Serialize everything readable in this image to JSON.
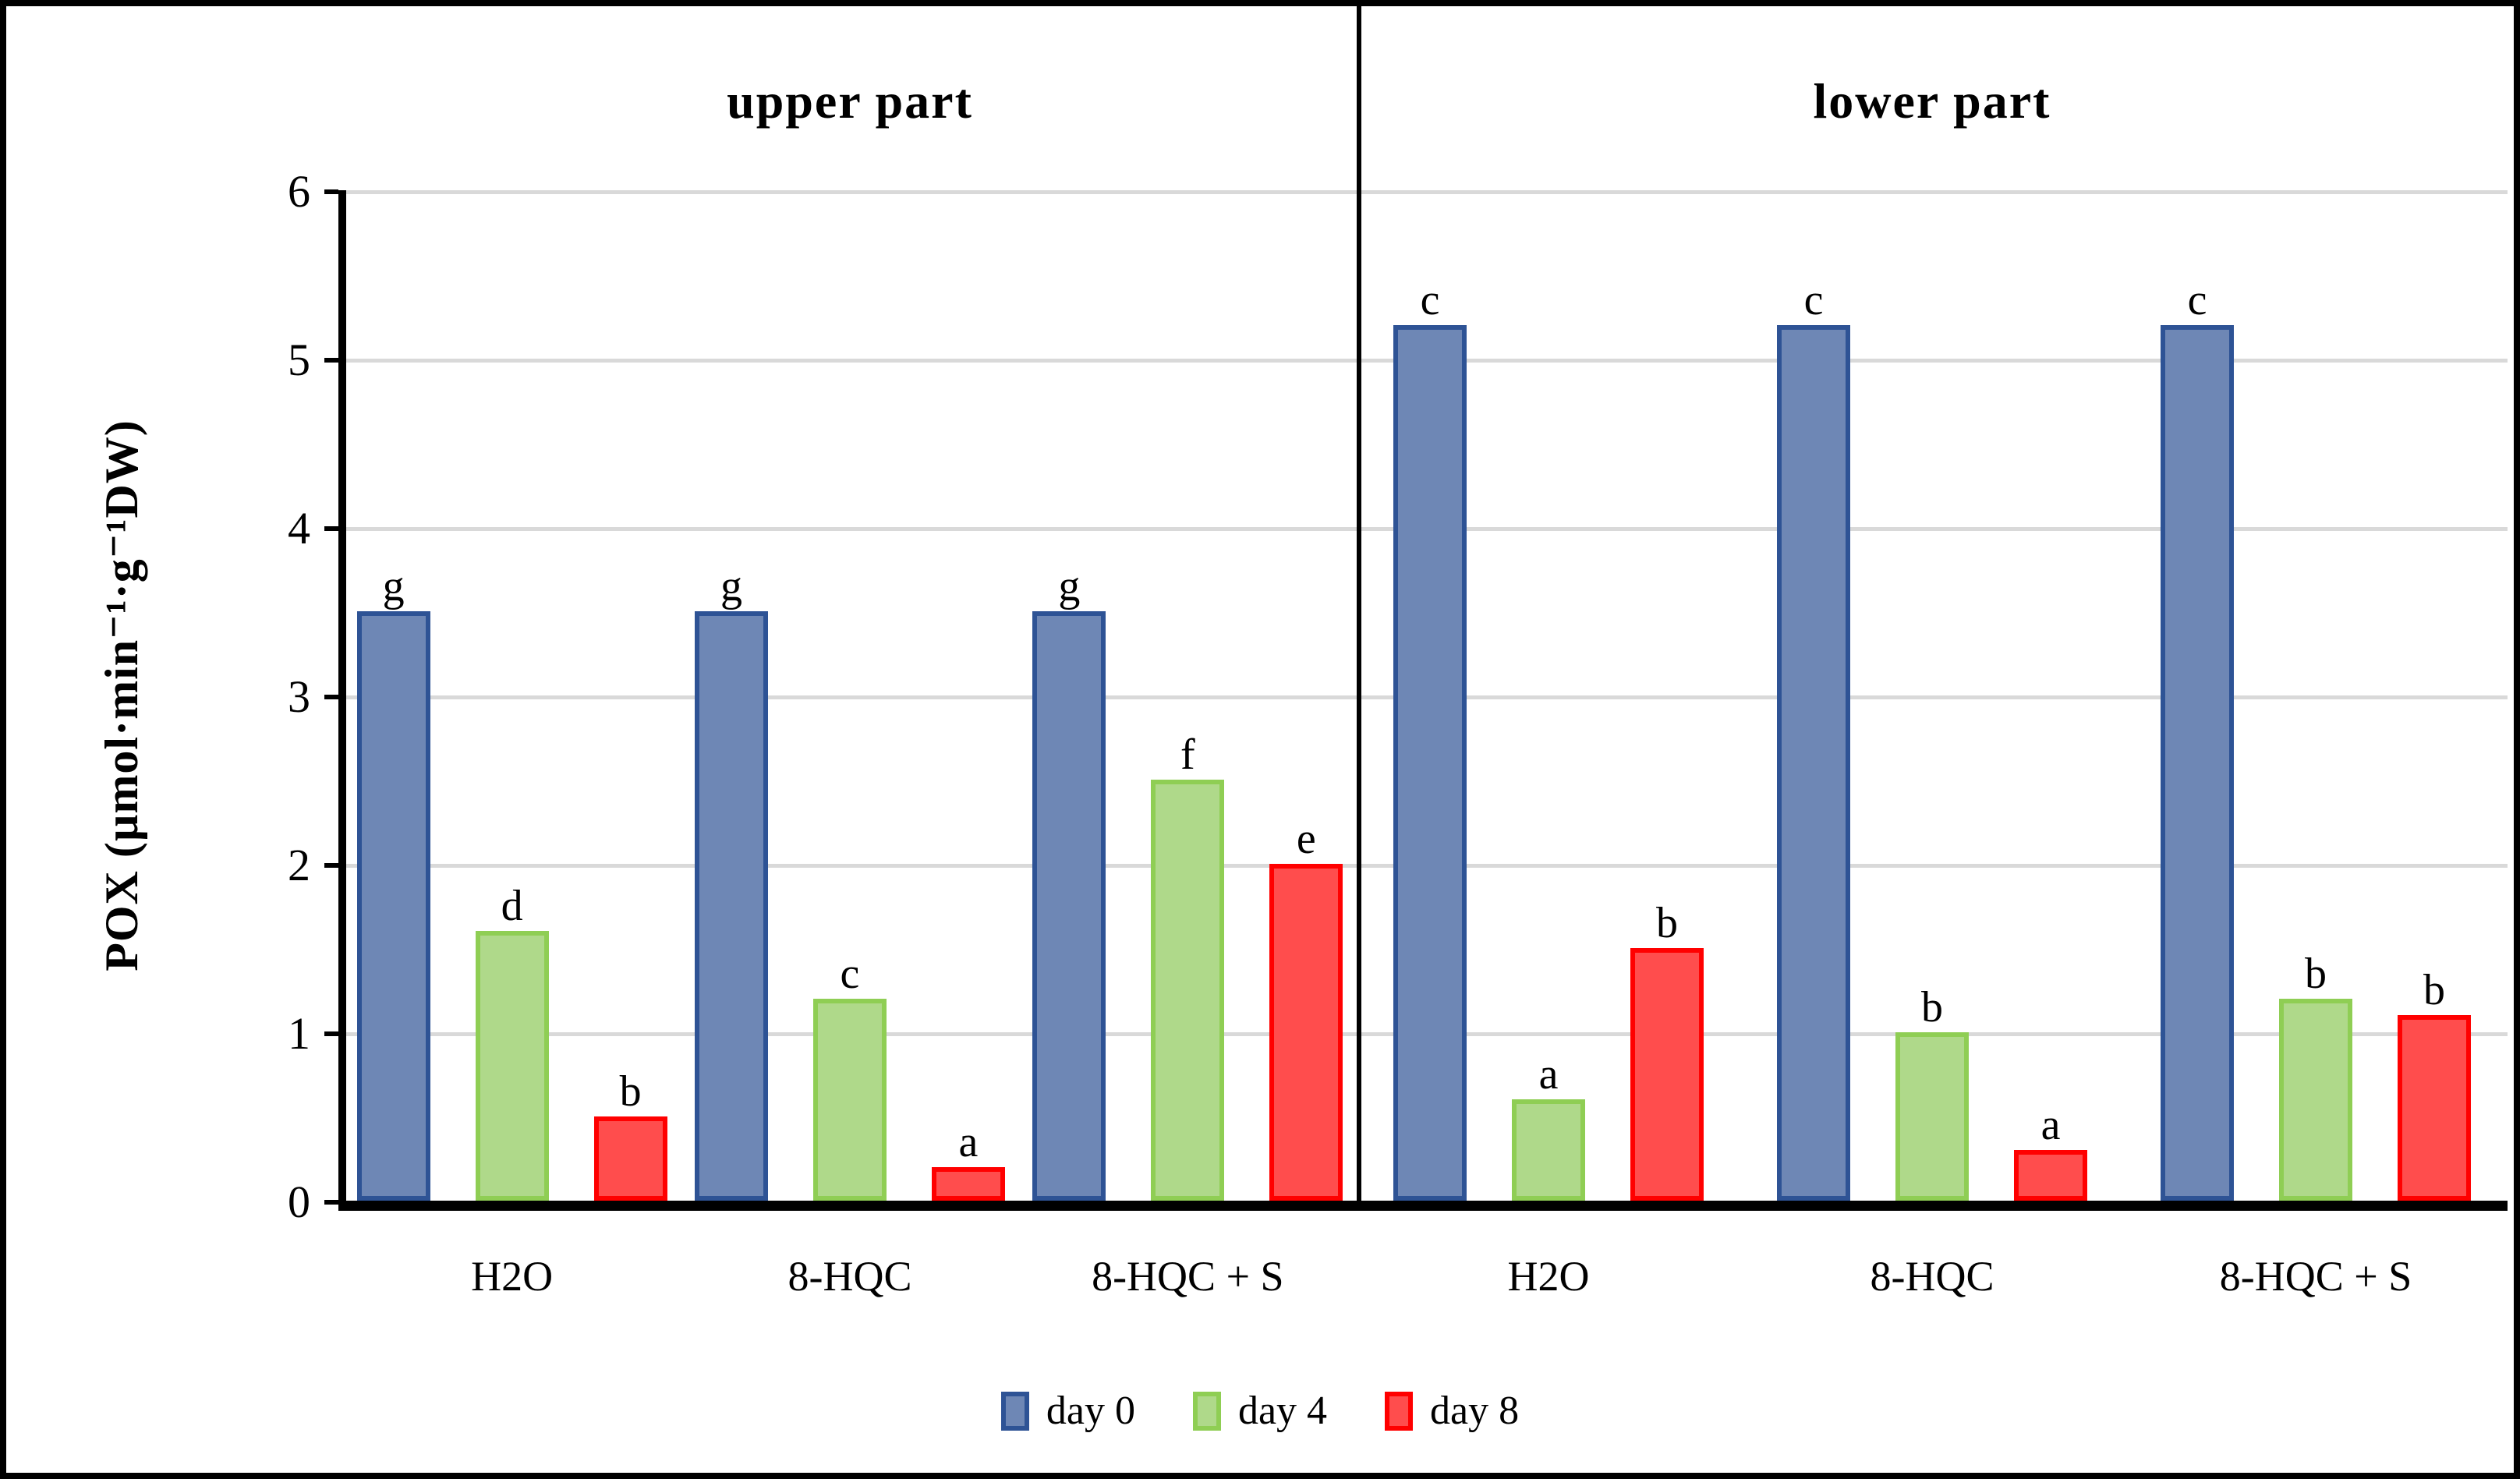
{
  "chart_data": {
    "type": "bar",
    "ylabel": "POX (µmol·min⁻¹·g⁻¹DW)",
    "ylim": [
      0,
      6
    ],
    "yticks": [
      0,
      1,
      2,
      3,
      4,
      5,
      6
    ],
    "grid": true,
    "legend_position": "bottom",
    "legend": [
      "day 0",
      "day 4",
      "day 8"
    ],
    "series_colors": [
      {
        "name": "day 0",
        "fill": "#6E87B5",
        "border": "#2E5395"
      },
      {
        "name": "day 4",
        "fill": "#AFD98A",
        "border": "#8FCE54"
      },
      {
        "name": "day 8",
        "fill": "#FF4D4D",
        "border": "#FF0000"
      }
    ],
    "panels": [
      {
        "title": "upper part",
        "categories": [
          "H2O",
          "8-HQC",
          "8-HQC + S"
        ],
        "series": [
          {
            "name": "day 0",
            "values": [
              3.5,
              3.5,
              3.5
            ],
            "letters": [
              "g",
              "g",
              "g"
            ]
          },
          {
            "name": "day 4",
            "values": [
              1.6,
              1.2,
              2.5
            ],
            "letters": [
              "d",
              "c",
              "f"
            ]
          },
          {
            "name": "day 8",
            "values": [
              0.5,
              0.2,
              2.0
            ],
            "letters": [
              "b",
              "a",
              "e"
            ]
          }
        ]
      },
      {
        "title": "lower part",
        "categories": [
          "H2O",
          "8-HQC",
          "8-HQC + S"
        ],
        "series": [
          {
            "name": "day 0",
            "values": [
              5.2,
              5.2,
              5.2
            ],
            "letters": [
              "c",
              "c",
              "c"
            ]
          },
          {
            "name": "day 4",
            "values": [
              0.6,
              1.0,
              1.2
            ],
            "letters": [
              "a",
              "b",
              "b"
            ]
          },
          {
            "name": "day 8",
            "values": [
              1.5,
              0.3,
              1.1
            ],
            "letters": [
              "b",
              "a",
              "b"
            ]
          }
        ]
      }
    ],
    "colors": {
      "gridline": "#D9D9D9",
      "axis": "#000000",
      "frame_border": "#000000",
      "background": "#FFFFFF"
    }
  }
}
